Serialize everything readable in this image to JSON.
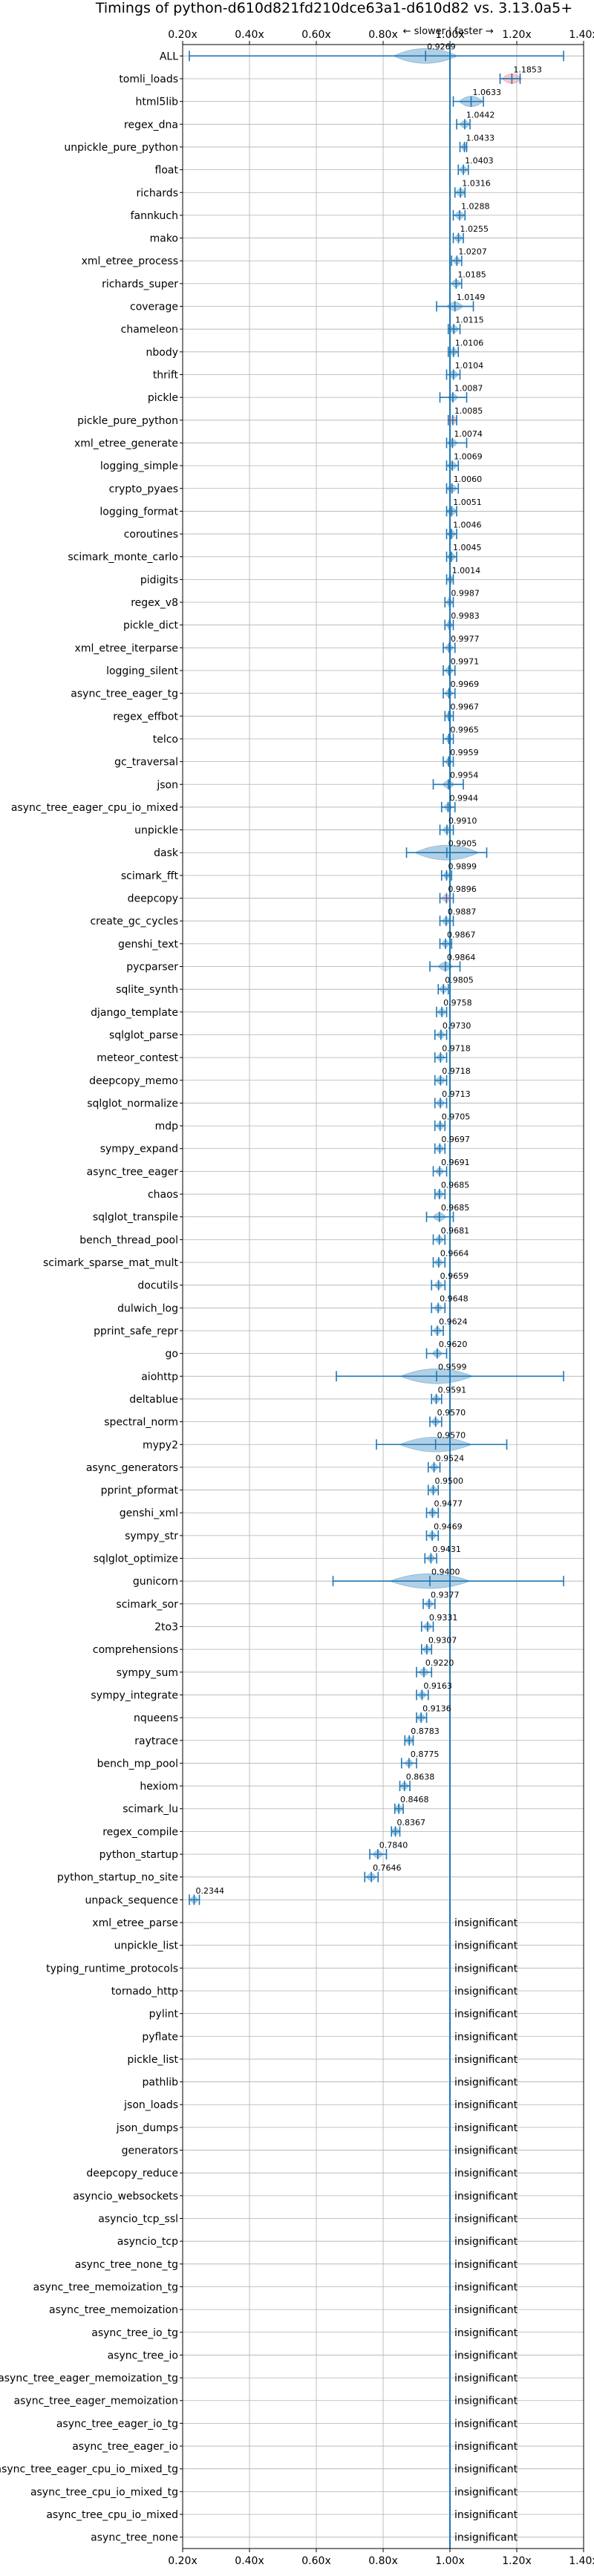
{
  "chart_data": {
    "type": "violin",
    "title": "Timings of python-d610d821fd210dce63a1-d610d82 vs. 3.13.0a5+",
    "direction_labels": {
      "slower": "← slower",
      "separator": "|",
      "faster": "faster →"
    },
    "xlim": [
      0.2,
      1.4
    ],
    "xticks": [
      0.2,
      0.4,
      0.6,
      0.8,
      1.0,
      1.2,
      1.4
    ],
    "xtick_labels": [
      "0.20x",
      "0.40x",
      "0.60x",
      "0.80x",
      "1.00x",
      "1.20x",
      "1.40x"
    ],
    "grid": true,
    "reference_line": 1.0,
    "colors": {
      "faster": "#1f77b4",
      "slower": "#e8646f",
      "grid": "#b0b0b0"
    },
    "insignificant_label": "insignificant",
    "benchmarks": [
      {
        "name": "ALL",
        "value": 0.9269,
        "label": "0.9269",
        "min": 0.22,
        "max": 1.34,
        "spread": 0.08
      },
      {
        "name": "tomli_loads",
        "value": 1.1853,
        "label": "1.1853",
        "min": 1.15,
        "max": 1.21,
        "spread": 0.025,
        "slower": true
      },
      {
        "name": "html5lib",
        "value": 1.0633,
        "label": "1.0633",
        "min": 1.01,
        "max": 1.1,
        "spread": 0.03
      },
      {
        "name": "regex_dna",
        "value": 1.0442,
        "label": "1.0442",
        "min": 1.02,
        "max": 1.06,
        "spread": 0.012
      },
      {
        "name": "unpickle_pure_python",
        "value": 1.0433,
        "label": "1.0433",
        "min": 1.03,
        "max": 1.05,
        "spread": 0.008
      },
      {
        "name": "float",
        "value": 1.0403,
        "label": "1.0403",
        "min": 1.025,
        "max": 1.055,
        "spread": 0.01
      },
      {
        "name": "richards",
        "value": 1.0316,
        "label": "1.0316",
        "min": 1.015,
        "max": 1.045,
        "spread": 0.012
      },
      {
        "name": "fannkuch",
        "value": 1.0288,
        "label": "1.0288",
        "min": 1.01,
        "max": 1.045,
        "spread": 0.012
      },
      {
        "name": "mako",
        "value": 1.0255,
        "label": "1.0255",
        "min": 1.01,
        "max": 1.04,
        "spread": 0.01
      },
      {
        "name": "xml_etree_process",
        "value": 1.0207,
        "label": "1.0207",
        "min": 1.005,
        "max": 1.035,
        "spread": 0.01
      },
      {
        "name": "richards_super",
        "value": 1.0185,
        "label": "1.0185",
        "min": 1.0,
        "max": 1.035,
        "spread": 0.012
      },
      {
        "name": "coverage",
        "value": 1.0149,
        "label": "1.0149",
        "min": 0.96,
        "max": 1.07,
        "spread": 0.02
      },
      {
        "name": "chameleon",
        "value": 1.0115,
        "label": "1.0115",
        "min": 0.995,
        "max": 1.03,
        "spread": 0.012
      },
      {
        "name": "nbody",
        "value": 1.0106,
        "label": "1.0106",
        "min": 0.995,
        "max": 1.025,
        "spread": 0.01
      },
      {
        "name": "thrift",
        "value": 1.0104,
        "label": "1.0104",
        "min": 0.99,
        "max": 1.03,
        "spread": 0.012
      },
      {
        "name": "pickle",
        "value": 1.0087,
        "label": "1.0087",
        "min": 0.97,
        "max": 1.05,
        "spread": 0.012
      },
      {
        "name": "pickle_pure_python",
        "value": 1.0085,
        "label": "1.0085",
        "min": 0.995,
        "max": 1.02,
        "spread": 0.012,
        "slower": true
      },
      {
        "name": "xml_etree_generate",
        "value": 1.0074,
        "label": "1.0074",
        "min": 0.99,
        "max": 1.05,
        "spread": 0.012
      },
      {
        "name": "logging_simple",
        "value": 1.0069,
        "label": "1.0069",
        "min": 0.99,
        "max": 1.025,
        "spread": 0.012
      },
      {
        "name": "crypto_pyaes",
        "value": 1.006,
        "label": "1.0060",
        "min": 0.99,
        "max": 1.025,
        "spread": 0.012
      },
      {
        "name": "logging_format",
        "value": 1.0051,
        "label": "1.0051",
        "min": 0.99,
        "max": 1.02,
        "spread": 0.012
      },
      {
        "name": "coroutines",
        "value": 1.0046,
        "label": "1.0046",
        "min": 0.99,
        "max": 1.02,
        "spread": 0.01
      },
      {
        "name": "scimark_monte_carlo",
        "value": 1.0045,
        "label": "1.0045",
        "min": 0.99,
        "max": 1.02,
        "spread": 0.01
      },
      {
        "name": "pidigits",
        "value": 1.0014,
        "label": "1.0014",
        "min": 0.99,
        "max": 1.01,
        "spread": 0.008
      },
      {
        "name": "regex_v8",
        "value": 0.9987,
        "label": "0.9987",
        "min": 0.985,
        "max": 1.01,
        "spread": 0.008
      },
      {
        "name": "pickle_dict",
        "value": 0.9983,
        "label": "0.9983",
        "min": 0.985,
        "max": 1.01,
        "spread": 0.008
      },
      {
        "name": "xml_etree_iterparse",
        "value": 0.9977,
        "label": "0.9977",
        "min": 0.98,
        "max": 1.015,
        "spread": 0.01
      },
      {
        "name": "logging_silent",
        "value": 0.9971,
        "label": "0.9971",
        "min": 0.98,
        "max": 1.015,
        "spread": 0.01
      },
      {
        "name": "async_tree_eager_tg",
        "value": 0.9969,
        "label": "0.9969",
        "min": 0.98,
        "max": 1.015,
        "spread": 0.01
      },
      {
        "name": "regex_effbot",
        "value": 0.9967,
        "label": "0.9967",
        "min": 0.985,
        "max": 1.01,
        "spread": 0.008
      },
      {
        "name": "telco",
        "value": 0.9965,
        "label": "0.9965",
        "min": 0.98,
        "max": 1.01,
        "spread": 0.008
      },
      {
        "name": "gc_traversal",
        "value": 0.9959,
        "label": "0.9959",
        "min": 0.98,
        "max": 1.01,
        "spread": 0.008
      },
      {
        "name": "json",
        "value": 0.9954,
        "label": "0.9954",
        "min": 0.95,
        "max": 1.04,
        "spread": 0.014
      },
      {
        "name": "async_tree_eager_cpu_io_mixed",
        "value": 0.9944,
        "label": "0.9944",
        "min": 0.975,
        "max": 1.015,
        "spread": 0.01
      },
      {
        "name": "unpickle",
        "value": 0.991,
        "label": "0.9910",
        "min": 0.97,
        "max": 1.01,
        "spread": 0.01
      },
      {
        "name": "dask",
        "value": 0.9905,
        "label": "0.9905",
        "min": 0.87,
        "max": 1.11,
        "spread": 0.08
      },
      {
        "name": "scimark_fft",
        "value": 0.9899,
        "label": "0.9899",
        "min": 0.975,
        "max": 1.005,
        "spread": 0.008
      },
      {
        "name": "deepcopy",
        "value": 0.9896,
        "label": "0.9896",
        "min": 0.97,
        "max": 1.01,
        "spread": 0.012,
        "slower": true
      },
      {
        "name": "create_gc_cycles",
        "value": 0.9887,
        "label": "0.9887",
        "min": 0.97,
        "max": 1.01,
        "spread": 0.01
      },
      {
        "name": "genshi_text",
        "value": 0.9867,
        "label": "0.9867",
        "min": 0.97,
        "max": 1.005,
        "spread": 0.01
      },
      {
        "name": "pycparser",
        "value": 0.9864,
        "label": "0.9864",
        "min": 0.94,
        "max": 1.03,
        "spread": 0.018
      },
      {
        "name": "sqlite_synth",
        "value": 0.9805,
        "label": "0.9805",
        "min": 0.965,
        "max": 0.995,
        "spread": 0.01
      },
      {
        "name": "django_template",
        "value": 0.9758,
        "label": "0.9758",
        "min": 0.96,
        "max": 0.99,
        "spread": 0.01
      },
      {
        "name": "sqlglot_parse",
        "value": 0.973,
        "label": "0.9730",
        "min": 0.955,
        "max": 0.99,
        "spread": 0.01
      },
      {
        "name": "meteor_contest",
        "value": 0.9718,
        "label": "0.9718",
        "min": 0.955,
        "max": 0.99,
        "spread": 0.01
      },
      {
        "name": "deepcopy_memo",
        "value": 0.9718,
        "label": "0.9718",
        "min": 0.955,
        "max": 0.99,
        "spread": 0.012
      },
      {
        "name": "sqlglot_normalize",
        "value": 0.9713,
        "label": "0.9713",
        "min": 0.955,
        "max": 0.99,
        "spread": 0.01
      },
      {
        "name": "mdp",
        "value": 0.9705,
        "label": "0.9705",
        "min": 0.955,
        "max": 0.985,
        "spread": 0.01
      },
      {
        "name": "sympy_expand",
        "value": 0.9697,
        "label": "0.9697",
        "min": 0.955,
        "max": 0.985,
        "spread": 0.01
      },
      {
        "name": "async_tree_eager",
        "value": 0.9691,
        "label": "0.9691",
        "min": 0.95,
        "max": 0.99,
        "spread": 0.01
      },
      {
        "name": "chaos",
        "value": 0.9685,
        "label": "0.9685",
        "min": 0.955,
        "max": 0.985,
        "spread": 0.01
      },
      {
        "name": "sqlglot_transpile",
        "value": 0.9685,
        "label": "0.9685",
        "min": 0.93,
        "max": 1.01,
        "spread": 0.016
      },
      {
        "name": "bench_thread_pool",
        "value": 0.9681,
        "label": "0.9681",
        "min": 0.95,
        "max": 0.985,
        "spread": 0.01
      },
      {
        "name": "scimark_sparse_mat_mult",
        "value": 0.9664,
        "label": "0.9664",
        "min": 0.95,
        "max": 0.985,
        "spread": 0.01
      },
      {
        "name": "docutils",
        "value": 0.9659,
        "label": "0.9659",
        "min": 0.945,
        "max": 0.985,
        "spread": 0.01
      },
      {
        "name": "dulwich_log",
        "value": 0.9648,
        "label": "0.9648",
        "min": 0.945,
        "max": 0.985,
        "spread": 0.01
      },
      {
        "name": "pprint_safe_repr",
        "value": 0.9624,
        "label": "0.9624",
        "min": 0.945,
        "max": 0.98,
        "spread": 0.01
      },
      {
        "name": "go",
        "value": 0.962,
        "label": "0.9620",
        "min": 0.93,
        "max": 0.99,
        "spread": 0.012
      },
      {
        "name": "aiohttp",
        "value": 0.9599,
        "label": "0.9599",
        "min": 0.66,
        "max": 1.34,
        "spread": 0.09
      },
      {
        "name": "deltablue",
        "value": 0.9591,
        "label": "0.9591",
        "min": 0.945,
        "max": 0.975,
        "spread": 0.01
      },
      {
        "name": "spectral_norm",
        "value": 0.957,
        "label": "0.9570",
        "min": 0.94,
        "max": 0.975,
        "spread": 0.01
      },
      {
        "name": "mypy2",
        "value": 0.957,
        "label": "0.9570",
        "min": 0.78,
        "max": 1.17,
        "spread": 0.09
      },
      {
        "name": "async_generators",
        "value": 0.9524,
        "label": "0.9524",
        "min": 0.935,
        "max": 0.97,
        "spread": 0.01
      },
      {
        "name": "pprint_pformat",
        "value": 0.95,
        "label": "0.9500",
        "min": 0.935,
        "max": 0.965,
        "spread": 0.01
      },
      {
        "name": "genshi_xml",
        "value": 0.9477,
        "label": "0.9477",
        "min": 0.93,
        "max": 0.965,
        "spread": 0.01
      },
      {
        "name": "sympy_str",
        "value": 0.9469,
        "label": "0.9469",
        "min": 0.93,
        "max": 0.965,
        "spread": 0.01
      },
      {
        "name": "sqlglot_optimize",
        "value": 0.9431,
        "label": "0.9431",
        "min": 0.925,
        "max": 0.96,
        "spread": 0.01
      },
      {
        "name": "gunicorn",
        "value": 0.94,
        "label": "0.9400",
        "min": 0.65,
        "max": 1.34,
        "spread": 0.1
      },
      {
        "name": "scimark_sor",
        "value": 0.9377,
        "label": "0.9377",
        "min": 0.92,
        "max": 0.955,
        "spread": 0.01
      },
      {
        "name": "2to3",
        "value": 0.9331,
        "label": "0.9331",
        "min": 0.915,
        "max": 0.95,
        "spread": 0.01
      },
      {
        "name": "comprehensions",
        "value": 0.9307,
        "label": "0.9307",
        "min": 0.915,
        "max": 0.945,
        "spread": 0.01
      },
      {
        "name": "sympy_sum",
        "value": 0.922,
        "label": "0.9220",
        "min": 0.9,
        "max": 0.945,
        "spread": 0.012
      },
      {
        "name": "sympy_integrate",
        "value": 0.9163,
        "label": "0.9163",
        "min": 0.9,
        "max": 0.935,
        "spread": 0.01
      },
      {
        "name": "nqueens",
        "value": 0.9136,
        "label": "0.9136",
        "min": 0.9,
        "max": 0.93,
        "spread": 0.01
      },
      {
        "name": "raytrace",
        "value": 0.8783,
        "label": "0.8783",
        "min": 0.865,
        "max": 0.89,
        "spread": 0.01
      },
      {
        "name": "bench_mp_pool",
        "value": 0.8775,
        "label": "0.8775",
        "min": 0.855,
        "max": 0.9,
        "spread": 0.01
      },
      {
        "name": "hexiom",
        "value": 0.8638,
        "label": "0.8638",
        "min": 0.85,
        "max": 0.88,
        "spread": 0.01
      },
      {
        "name": "scimark_lu",
        "value": 0.8468,
        "label": "0.8468",
        "min": 0.835,
        "max": 0.86,
        "spread": 0.01
      },
      {
        "name": "regex_compile",
        "value": 0.8367,
        "label": "0.8367",
        "min": 0.825,
        "max": 0.85,
        "spread": 0.01
      },
      {
        "name": "python_startup",
        "value": 0.784,
        "label": "0.7840",
        "min": 0.76,
        "max": 0.81,
        "spread": 0.012
      },
      {
        "name": "python_startup_no_site",
        "value": 0.7646,
        "label": "0.7646",
        "min": 0.745,
        "max": 0.785,
        "spread": 0.012
      },
      {
        "name": "unpack_sequence",
        "value": 0.2344,
        "label": "0.2344",
        "min": 0.22,
        "max": 0.25,
        "spread": 0.01
      },
      {
        "name": "xml_etree_parse",
        "insignificant": true
      },
      {
        "name": "unpickle_list",
        "insignificant": true
      },
      {
        "name": "typing_runtime_protocols",
        "insignificant": true
      },
      {
        "name": "tornado_http",
        "insignificant": true
      },
      {
        "name": "pylint",
        "insignificant": true
      },
      {
        "name": "pyflate",
        "insignificant": true
      },
      {
        "name": "pickle_list",
        "insignificant": true
      },
      {
        "name": "pathlib",
        "insignificant": true
      },
      {
        "name": "json_loads",
        "insignificant": true
      },
      {
        "name": "json_dumps",
        "insignificant": true
      },
      {
        "name": "generators",
        "insignificant": true
      },
      {
        "name": "deepcopy_reduce",
        "insignificant": true
      },
      {
        "name": "asyncio_websockets",
        "insignificant": true
      },
      {
        "name": "asyncio_tcp_ssl",
        "insignificant": true
      },
      {
        "name": "asyncio_tcp",
        "insignificant": true
      },
      {
        "name": "async_tree_none_tg",
        "insignificant": true
      },
      {
        "name": "async_tree_memoization_tg",
        "insignificant": true
      },
      {
        "name": "async_tree_memoization",
        "insignificant": true
      },
      {
        "name": "async_tree_io_tg",
        "insignificant": true
      },
      {
        "name": "async_tree_io",
        "insignificant": true
      },
      {
        "name": "async_tree_eager_memoization_tg",
        "insignificant": true
      },
      {
        "name": "async_tree_eager_memoization",
        "insignificant": true
      },
      {
        "name": "async_tree_eager_io_tg",
        "insignificant": true
      },
      {
        "name": "async_tree_eager_io",
        "insignificant": true
      },
      {
        "name": "async_tree_eager_cpu_io_mixed_tg",
        "insignificant": true
      },
      {
        "name": "async_tree_cpu_io_mixed_tg",
        "insignificant": true
      },
      {
        "name": "async_tree_cpu_io_mixed",
        "insignificant": true
      },
      {
        "name": "async_tree_none",
        "insignificant": true
      }
    ]
  }
}
